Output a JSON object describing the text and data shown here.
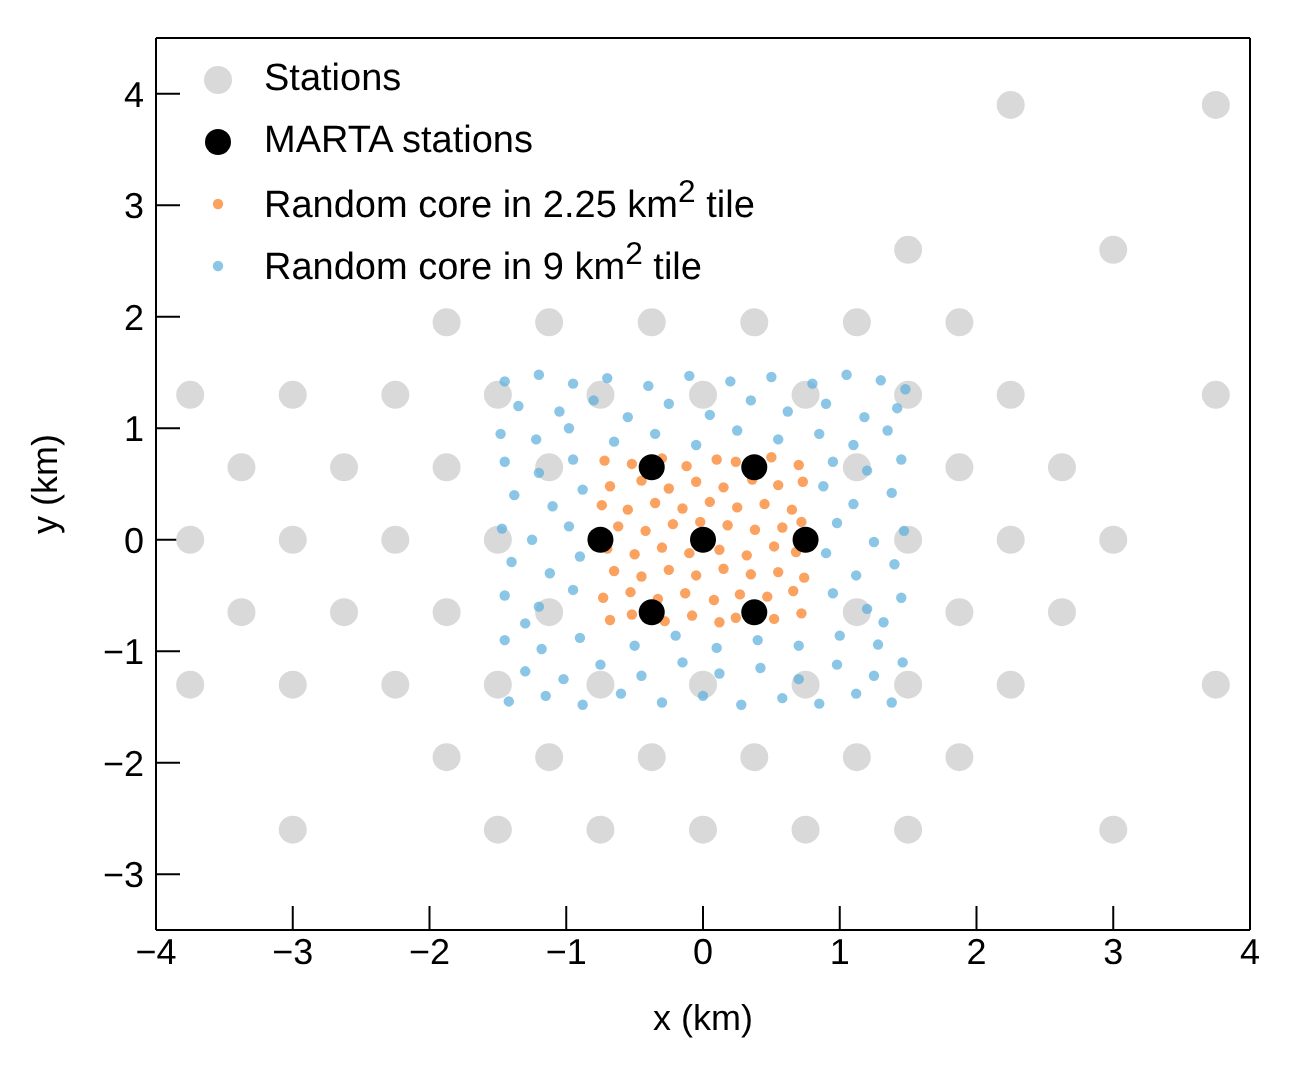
{
  "chart_data": {
    "type": "scatter",
    "xlabel": "x (km)",
    "ylabel": "y (km)",
    "xlim": [
      -4,
      4
    ],
    "xticks": [
      -4,
      -3,
      -2,
      -1,
      0,
      1,
      2,
      3,
      4
    ],
    "ylim": [
      -3.5,
      4.5
    ],
    "yticks": [
      -3,
      -2,
      -1,
      0,
      1,
      2,
      3,
      4
    ],
    "grid": false,
    "legend": "top left",
    "marker": "circle",
    "series": [
      {
        "name": "Stations",
        "color": "#d9d9d9",
        "x": [
          2.25,
          3.75,
          1.5,
          3.0,
          -1.875,
          -1.125,
          -0.375,
          0.375,
          1.125,
          1.875,
          -3.75,
          -3,
          -2.25,
          -1.5,
          -0.75,
          0,
          0.75,
          1.5,
          2.25,
          3.75,
          -3.375,
          -2.625,
          -1.875,
          -1.125,
          1.125,
          1.875,
          2.625,
          -3.75,
          -3,
          -2.25,
          -1.5,
          1.5,
          2.25,
          3.0,
          -3.375,
          -2.625,
          -1.875,
          -1.125,
          1.125,
          1.875,
          2.625,
          -3.75,
          -3,
          -2.25,
          -1.5,
          -0.75,
          0,
          0.75,
          1.5,
          2.25,
          3.75,
          -1.875,
          -1.125,
          -0.375,
          0.375,
          1.125,
          1.875,
          -3,
          -1.5,
          -0.75,
          0,
          0.75,
          1.5,
          3.0
        ],
        "values": [
          3.9,
          3.9,
          2.6,
          2.6,
          1.95,
          1.95,
          1.95,
          1.95,
          1.95,
          1.95,
          1.3,
          1.3,
          1.3,
          1.3,
          1.3,
          1.3,
          1.3,
          1.3,
          1.3,
          1.3,
          0.65,
          0.65,
          0.65,
          0.65,
          0.65,
          0.65,
          0.65,
          0,
          0,
          0,
          0,
          0,
          0,
          0,
          -0.65,
          -0.65,
          -0.65,
          -0.65,
          -0.65,
          -0.65,
          -0.65,
          -1.3,
          -1.3,
          -1.3,
          -1.3,
          -1.3,
          -1.3,
          -1.3,
          -1.3,
          -1.3,
          -1.3,
          -1.95,
          -1.95,
          -1.95,
          -1.95,
          -1.95,
          -1.95,
          -2.6,
          -2.6,
          -2.6,
          -2.6,
          -2.6,
          -2.6,
          -2.6
        ]
      },
      {
        "name": "MARTA stations",
        "color": "#000000",
        "x": [
          -0.375,
          0.375,
          -0.75,
          0,
          0.75,
          -0.375,
          0.375
        ],
        "values": [
          0.65,
          0.65,
          0,
          0,
          0,
          -0.65,
          -0.65
        ]
      },
      {
        "name": "Random core in 2.25 km$^{2}$ tile",
        "color": "#f97b1c",
        "x": [
          -0.72,
          -0.52,
          -0.3,
          -0.12,
          0.1,
          0.24,
          0.5,
          0.7,
          -0.68,
          -0.45,
          -0.25,
          -0.05,
          0.15,
          0.36,
          0.55,
          0.73,
          -0.74,
          -0.55,
          -0.35,
          -0.15,
          0.05,
          0.25,
          0.45,
          0.65,
          -0.62,
          -0.42,
          -0.22,
          -0.02,
          0.18,
          0.38,
          0.58,
          0.72,
          -0.7,
          -0.5,
          -0.3,
          -0.1,
          0.12,
          0.32,
          0.52,
          0.68,
          -0.65,
          -0.45,
          -0.25,
          -0.05,
          0.15,
          0.35,
          0.55,
          0.74,
          -0.73,
          -0.53,
          -0.33,
          -0.13,
          0.08,
          0.27,
          0.47,
          0.66,
          -0.68,
          -0.52,
          -0.28,
          -0.08,
          0.12,
          0.24,
          0.52,
          0.72
        ],
        "values": [
          0.71,
          0.68,
          0.73,
          0.66,
          0.72,
          0.7,
          0.74,
          0.67,
          0.48,
          0.53,
          0.46,
          0.52,
          0.47,
          0.54,
          0.49,
          0.52,
          0.31,
          0.27,
          0.33,
          0.28,
          0.34,
          0.29,
          0.32,
          0.27,
          0.12,
          0.08,
          0.14,
          0.16,
          0.13,
          0.09,
          0.11,
          0.16,
          -0.08,
          -0.13,
          -0.07,
          -0.12,
          -0.09,
          -0.14,
          -0.06,
          -0.11,
          -0.28,
          -0.33,
          -0.27,
          -0.32,
          -0.26,
          -0.31,
          -0.29,
          -0.34,
          -0.52,
          -0.47,
          -0.53,
          -0.48,
          -0.54,
          -0.49,
          -0.51,
          -0.46,
          -0.72,
          -0.67,
          -0.73,
          -0.68,
          -0.74,
          -0.7,
          -0.71,
          -0.66
        ]
      },
      {
        "name": "Random core in 9 km$^{2}$ tile",
        "color": "#5aaedc",
        "x": [
          -1.45,
          -1.2,
          -0.95,
          -0.7,
          -0.4,
          -0.1,
          0.2,
          0.5,
          0.8,
          1.05,
          1.3,
          1.48,
          -1.35,
          -1.05,
          -0.8,
          -0.55,
          -0.25,
          0.05,
          0.35,
          0.62,
          0.9,
          1.18,
          1.42,
          -1.48,
          -1.22,
          -0.98,
          -0.65,
          -0.35,
          -0.05,
          0.25,
          0.55,
          0.85,
          1.1,
          1.35,
          -1.42,
          -1.15,
          -0.88,
          -0.6,
          -0.3,
          0.0,
          0.28,
          0.58,
          0.85,
          1.12,
          1.38,
          -1.3,
          -1.02,
          -0.75,
          -0.45,
          -0.15,
          0.12,
          0.42,
          0.7,
          0.98,
          1.25,
          1.46,
          -1.45,
          -1.18,
          -0.9,
          -0.5,
          -0.2,
          0.1,
          0.4,
          0.7,
          1.0,
          1.28,
          -1.45,
          -1.2,
          -0.95,
          -1.38,
          -1.1,
          -0.88,
          -1.47,
          -1.25,
          -0.98,
          -1.4,
          -1.12,
          -0.9,
          -1.45,
          -1.2,
          -0.95,
          -1.3,
          1.45,
          1.2,
          0.95,
          1.38,
          1.1,
          0.88,
          1.47,
          1.25,
          0.98,
          1.4,
          1.12,
          0.9,
          1.45,
          1.2,
          0.95,
          1.32
        ],
        "values": [
          1.42,
          1.48,
          1.4,
          1.45,
          1.38,
          1.47,
          1.42,
          1.46,
          1.4,
          1.48,
          1.43,
          1.35,
          1.2,
          1.15,
          1.25,
          1.1,
          1.22,
          1.12,
          1.25,
          1.15,
          1.22,
          1.1,
          1.18,
          0.95,
          0.9,
          1.0,
          0.88,
          0.95,
          0.85,
          0.98,
          0.9,
          0.95,
          0.85,
          0.98,
          -1.45,
          -1.4,
          -1.48,
          -1.38,
          -1.46,
          -1.4,
          -1.48,
          -1.42,
          -1.47,
          -1.38,
          -1.46,
          -1.18,
          -1.25,
          -1.12,
          -1.22,
          -1.1,
          -1.2,
          -1.15,
          -1.25,
          -1.12,
          -1.22,
          -1.1,
          -0.9,
          -0.98,
          -0.88,
          -0.95,
          -0.86,
          -0.97,
          -0.9,
          -0.95,
          -0.86,
          -0.94,
          0.7,
          0.6,
          0.72,
          0.4,
          0.3,
          0.45,
          0.1,
          0.0,
          0.12,
          -0.2,
          -0.3,
          -0.15,
          -0.5,
          -0.6,
          -0.45,
          -0.75,
          0.72,
          0.62,
          0.7,
          0.42,
          0.32,
          0.48,
          0.08,
          -0.02,
          0.15,
          -0.22,
          -0.32,
          -0.12,
          -0.52,
          -0.62,
          -0.48,
          -0.74
        ]
      }
    ]
  }
}
